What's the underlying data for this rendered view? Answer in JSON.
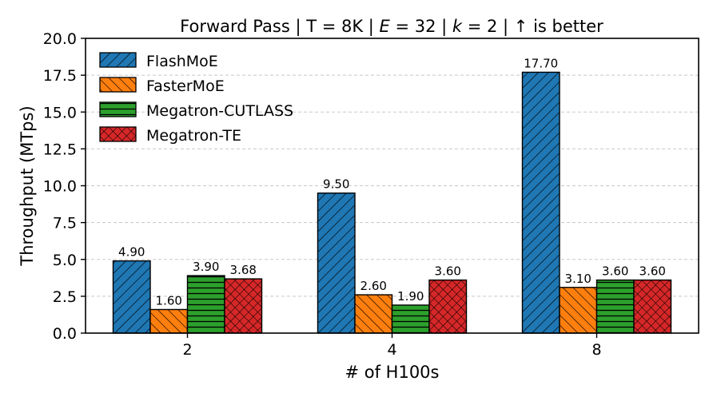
{
  "chart_data": {
    "type": "bar",
    "title": "Forward Pass | T = 8K | E = 32 | k = 2 |  ↑  is better",
    "title_parts": [
      "Forward Pass | T = 8K | ",
      "E",
      " = 32 | ",
      "k",
      " = 2 |  ↑  is better"
    ],
    "xlabel": "# of H100s",
    "ylabel": "Throughput (MTps)",
    "categories": [
      "2",
      "4",
      "8"
    ],
    "ylim": [
      0,
      20
    ],
    "yticks": [
      "0.0",
      "2.5",
      "5.0",
      "7.5",
      "10.0",
      "12.5",
      "15.0",
      "17.5",
      "20.0"
    ],
    "grid": "horizontal dashed",
    "legend_position": "top-left",
    "series": [
      {
        "name": "FlashMoE",
        "values": [
          4.9,
          9.5,
          17.7
        ],
        "labels": [
          "4.90",
          "9.50",
          "17.70"
        ],
        "color": "#1f77b4",
        "hatch": "diagonal"
      },
      {
        "name": "FasterMoE",
        "values": [
          1.6,
          2.6,
          3.1
        ],
        "labels": [
          "1.60",
          "2.60",
          "3.10"
        ],
        "color": "#ff7f0e",
        "hatch": "back-diagonal"
      },
      {
        "name": "Megatron-CUTLASS",
        "values": [
          3.9,
          1.9,
          3.6
        ],
        "labels": [
          "3.90",
          "1.90",
          "3.60"
        ],
        "color": "#2ca02c",
        "hatch": "horizontal"
      },
      {
        "name": "Megatron-TE",
        "values": [
          3.68,
          3.6,
          3.6
        ],
        "labels": [
          "3.68",
          "3.60",
          "3.60"
        ],
        "color": "#d62728",
        "hatch": "crosshatch"
      }
    ]
  }
}
